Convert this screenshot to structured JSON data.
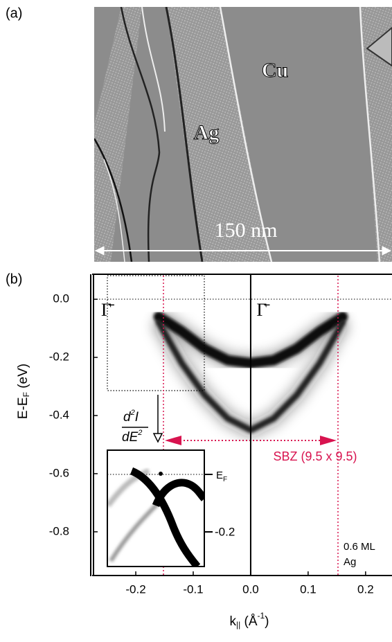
{
  "panel_a": {
    "label": "(a)",
    "cu_label": "Cu",
    "ag_label": "Ag",
    "scale_bar": "150 nm"
  },
  "chart_data": {
    "type": "band-map",
    "label": "(b)",
    "y_label": {
      "main": "E-E",
      "sub": "F",
      "unit": " (eV)"
    },
    "x_label": {
      "main": "k",
      "sub": "||",
      "open": " (Å",
      "sup": "-1",
      "close": ")"
    },
    "xlim": [
      -0.276,
      0.246
    ],
    "ylim": [
      0.086,
      -0.948
    ],
    "xticks": [
      -0.2,
      -0.1,
      {
        "value": 0,
        "label": "0.0"
      },
      0.1,
      0.2
    ],
    "yticks": [
      {
        "value": 0,
        "label": "0.0"
      },
      -0.2,
      -0.4,
      -0.6,
      -0.8
    ],
    "x": [
      -0.16,
      -0.12,
      -0.08,
      -0.04,
      0,
      0.04,
      0.08,
      0.12,
      0.16
    ],
    "series": [
      {
        "color": "#111111",
        "values": [
          -0.06,
          -0.11,
          -0.17,
          -0.21,
          -0.22,
          -0.21,
          -0.17,
          -0.11,
          -0.06
        ]
      },
      {
        "color": "#222222",
        "values": [
          -0.08,
          -0.22,
          -0.33,
          -0.41,
          -0.45,
          -0.41,
          -0.33,
          -0.22,
          -0.08
        ]
      }
    ],
    "gamma_left": "Γ̄",
    "gamma_center": "Γ̄",
    "sbz_label": "SBZ (9.5 x 9.5)",
    "coverage": [
      "0.6 ML",
      "Ag"
    ],
    "derivative": {
      "num": "d",
      "num_sup": "2",
      "num_tail": "I",
      "den": "dE",
      "den_sup": "2"
    },
    "inset": {
      "ef_main": "E",
      "ef_sub": "F",
      "tick": "-0.2"
    }
  }
}
